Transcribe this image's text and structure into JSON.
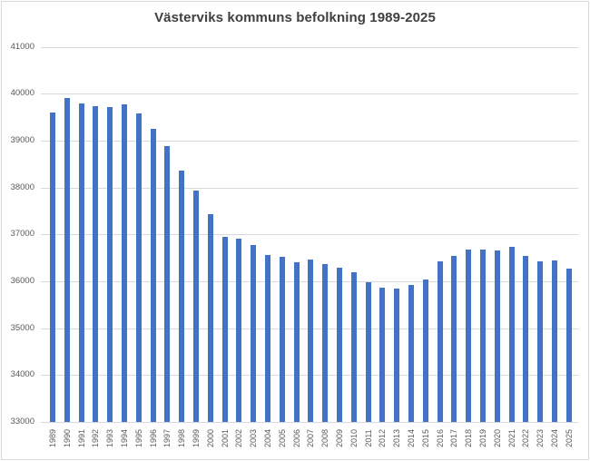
{
  "title": "Västerviks kommuns befolkning 1989-2025",
  "colors": {
    "bar": "#4472C4",
    "gridline": "#D9D9D9",
    "axis_label": "#595959",
    "title": "#404040",
    "border": "#D9D9D9",
    "background": "#FFFFFF"
  },
  "chart_data": {
    "type": "bar",
    "title": "Västerviks kommuns befolkning 1989-2025",
    "xlabel": "",
    "ylabel": "",
    "legend": "none",
    "grid": true,
    "ylim": [
      33000,
      41000
    ],
    "yticks": [
      33000,
      34000,
      35000,
      36000,
      37000,
      38000,
      39000,
      40000,
      41000
    ],
    "categories": [
      "1989",
      "1990",
      "1991",
      "1992",
      "1993",
      "1994",
      "1995",
      "1996",
      "1997",
      "1998",
      "1999",
      "2000",
      "2001",
      "2002",
      "2003",
      "2004",
      "2005",
      "2006",
      "2007",
      "2008",
      "2009",
      "2010",
      "2011",
      "2012",
      "2013",
      "2014",
      "2015",
      "2016",
      "2017",
      "2018",
      "2019",
      "2020",
      "2021",
      "2022",
      "2023",
      "2024",
      "2025"
    ],
    "values": [
      39610,
      39910,
      39800,
      39740,
      39715,
      39775,
      39585,
      39260,
      38885,
      38355,
      37935,
      37440,
      36950,
      36910,
      36785,
      36560,
      36525,
      36405,
      36465,
      36365,
      36295,
      36195,
      35985,
      35870,
      35840,
      35915,
      36045,
      36420,
      36550,
      36675,
      36675,
      36660,
      36735,
      36550,
      36420,
      36450,
      36270
    ]
  }
}
